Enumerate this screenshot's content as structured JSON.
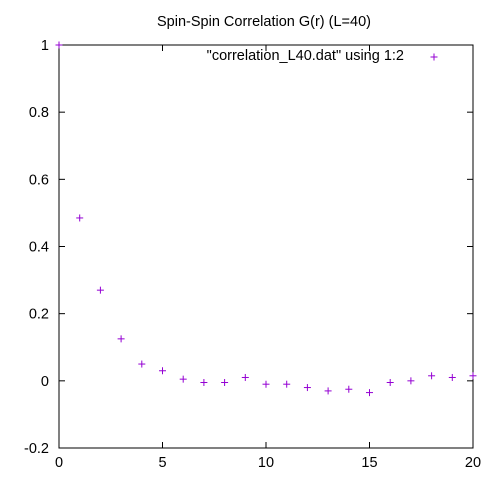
{
  "chart_data": {
    "type": "scatter",
    "title": "Spin-Spin Correlation G(r) (L=40)",
    "xlabel": "",
    "ylabel": "",
    "xlim": [
      0,
      20
    ],
    "ylim": [
      -0.2,
      1
    ],
    "x_ticks": [
      0,
      5,
      10,
      15,
      20
    ],
    "y_ticks": [
      -0.2,
      0,
      0.2,
      0.4,
      0.6,
      0.8,
      1
    ],
    "x_tick_labels": [
      "0",
      "5",
      "10",
      "15",
      "20"
    ],
    "y_tick_labels": [
      "-0.2",
      "0",
      "0.2",
      "0.4",
      "0.6",
      "0.8",
      "1"
    ],
    "grid": false,
    "legend_position": "top-right",
    "marker": "+",
    "colors": {
      "series": "#9400d3",
      "axes": "#000000",
      "background": "#ffffff"
    },
    "series": [
      {
        "name": "\"correlation_L40.dat\" using 1:2",
        "x": [
          0,
          1,
          2,
          3,
          4,
          5,
          6,
          7,
          8,
          9,
          10,
          11,
          12,
          13,
          14,
          15,
          16,
          17,
          18,
          19,
          20
        ],
        "y": [
          1.0,
          0.485,
          0.27,
          0.125,
          0.05,
          0.03,
          0.005,
          -0.005,
          -0.005,
          0.01,
          -0.01,
          -0.01,
          -0.02,
          -0.03,
          -0.025,
          -0.035,
          -0.005,
          0.0,
          0.015,
          0.01,
          0.015
        ]
      }
    ]
  }
}
